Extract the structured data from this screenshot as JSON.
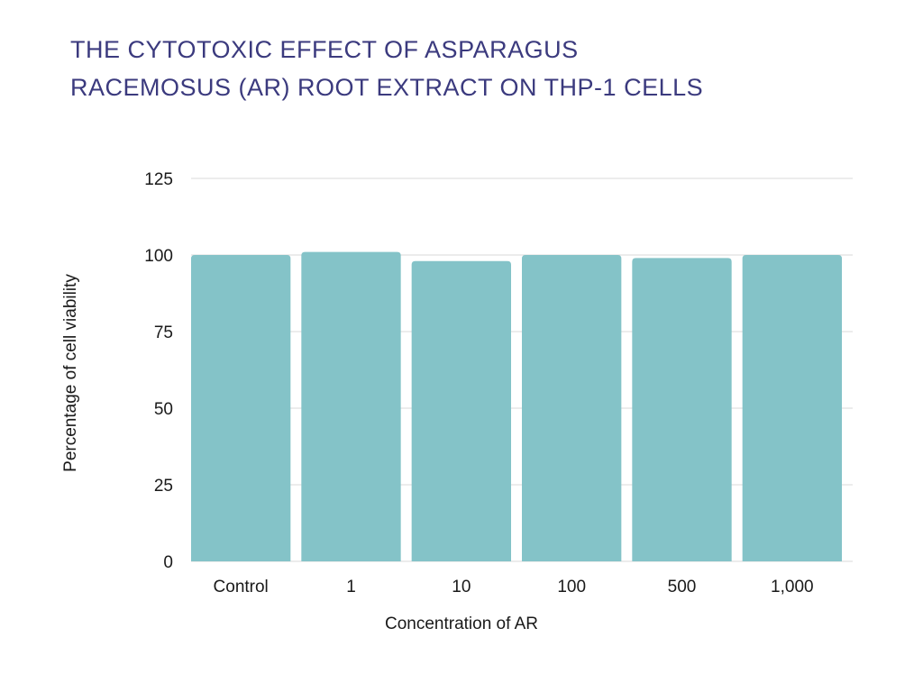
{
  "chart_data": {
    "type": "bar",
    "title": "The cytotoxic effect of Asparagus racemosus (AR) root extract on THP-1 cells",
    "xlabel": "Concentration of AR",
    "ylabel": "Percentage of cell viability",
    "categories": [
      "Control",
      "1",
      "10",
      "100",
      "500",
      "1,000"
    ],
    "values": [
      100,
      101,
      98,
      100,
      99,
      100
    ],
    "ylim": [
      0,
      125
    ],
    "yticks": [
      0,
      25,
      50,
      75,
      100,
      125
    ],
    "grid": true,
    "bar_color": "#84c3c8",
    "grid_color": "#d9d9d9",
    "title_color": "#3b3a7e"
  }
}
